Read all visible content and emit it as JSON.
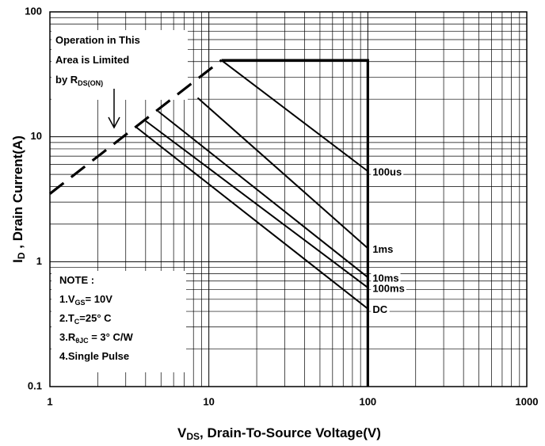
{
  "chart_data": {
    "type": "line",
    "xlabel": [
      {
        "text": "V"
      },
      {
        "sub": "DS"
      },
      {
        "text": ", Drain-To-Source Voltage(V)"
      }
    ],
    "ylabel": [
      {
        "text": "I"
      },
      {
        "sub": "D"
      },
      {
        "text": " , Drain Current(A)"
      }
    ],
    "xlog": true,
    "ylog": true,
    "grid": true,
    "minor_grid": true,
    "xlim": [
      1,
      1000
    ],
    "ylim": [
      0.1,
      100
    ],
    "xticks": [
      1,
      10,
      100,
      1000
    ],
    "yticks": [
      0.1,
      1,
      10,
      100
    ],
    "series": [
      {
        "x": [
          1,
          12
        ],
        "values": [
          3.5,
          41
        ],
        "color": "#000000",
        "dashed": true
      },
      {
        "x": [
          12,
          100,
          100
        ],
        "values": [
          41,
          41,
          0.1
        ],
        "color": "#000000"
      },
      {
        "name": "100us",
        "x": [
          12,
          100
        ],
        "values": [
          41,
          5.3
        ],
        "color": "#000000"
      },
      {
        "name": "1ms",
        "x": [
          8.5,
          100
        ],
        "values": [
          20.5,
          1.28
        ],
        "color": "#000000"
      },
      {
        "name": "10ms",
        "x": [
          4.8,
          100
        ],
        "values": [
          16,
          0.75
        ],
        "color": "#000000"
      },
      {
        "name": "100ms",
        "x": [
          4,
          100
        ],
        "values": [
          13.4,
          0.62
        ],
        "color": "#000000"
      },
      {
        "name": "DC",
        "x": [
          3.5,
          100
        ],
        "values": [
          11.9,
          0.42
        ],
        "color": "#000000"
      }
    ],
    "annotation": [
      [
        {
          "text": "Operation in This"
        }
      ],
      [
        {
          "text": "Area is Limited"
        }
      ],
      [
        {
          "text": "by R"
        },
        {
          "sub": "DS(ON)"
        }
      ]
    ],
    "note": [
      [
        {
          "text": "NOTE :"
        }
      ],
      [
        {
          "text": "1.V"
        },
        {
          "sub": "GS"
        },
        {
          "text": "= 10V"
        }
      ],
      [
        {
          "text": "2.T"
        },
        {
          "sub": "C"
        },
        {
          "text": "=25° C"
        }
      ],
      [
        {
          "text": "3.R"
        },
        {
          "sub": "θJC"
        },
        {
          "text": " = 3° C/W"
        }
      ],
      [
        {
          "text": "4.Single Pulse"
        }
      ]
    ]
  }
}
